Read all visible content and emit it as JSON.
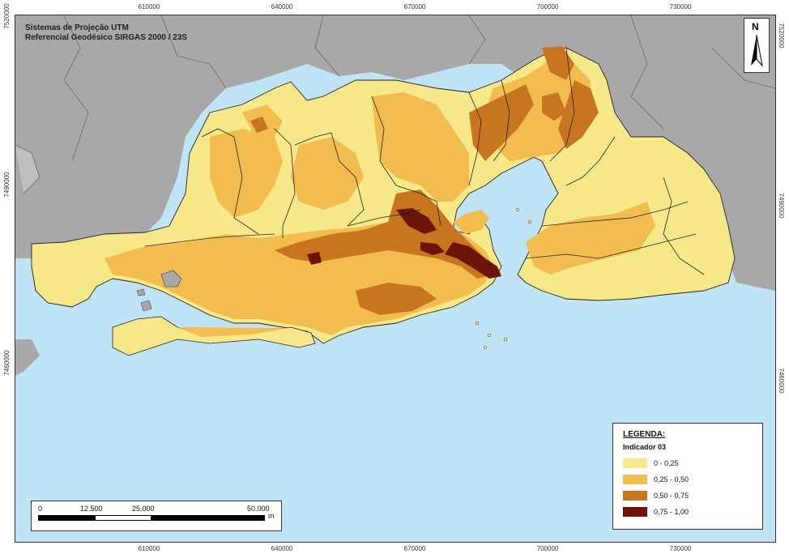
{
  "projection": {
    "line1": "Sistemas de Projeção UTM",
    "line2": "Referencial Geodésico SIRGAS 2000 / 23S"
  },
  "coords": {
    "x_ticks": [
      "610000",
      "640000",
      "670000",
      "700000",
      "730000"
    ],
    "y_ticks": [
      "7520000",
      "7490000",
      "7460000"
    ]
  },
  "north": {
    "label": "N"
  },
  "legend": {
    "title": "LEGENDA:",
    "subtitle": "Indicador 03",
    "items": [
      {
        "label": "0 - 0,25",
        "color": "#f7e88a"
      },
      {
        "label": "0,25 - 0,50",
        "color": "#f2bc4e"
      },
      {
        "label": "0,50 - 0,75",
        "color": "#c8751f"
      },
      {
        "label": "0,75 - 1,00",
        "color": "#6b1408"
      }
    ]
  },
  "scalebar": {
    "labels": [
      "0",
      "12.500",
      "25.000",
      "50.000"
    ],
    "unit": "m"
  },
  "colors": {
    "water": "#bfe4f6",
    "outside_land": "#a8a8a8",
    "border": "#333333"
  }
}
